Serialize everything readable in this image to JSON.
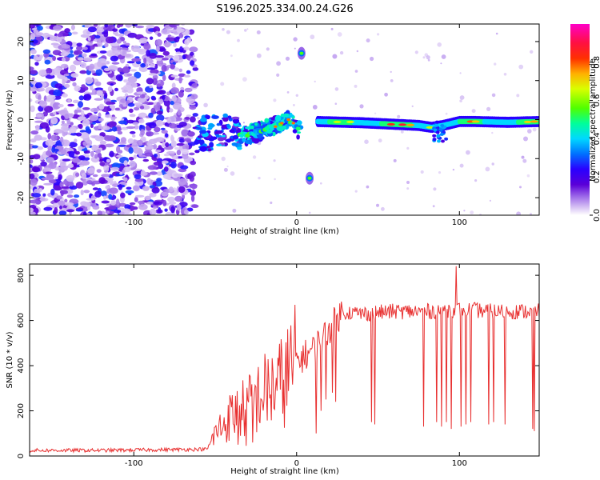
{
  "figure_title": "S196.2025.334.00.24.G26",
  "chart_data": [
    {
      "type": "heatmap",
      "title": "S196.2025.334.00.24.G26",
      "xlabel": "Height of straight line (km)",
      "ylabel": "Frequency (Hz)",
      "xlim": [
        -164,
        149
      ],
      "ylim": [
        -24.5,
        24.5
      ],
      "xticks": [
        -100,
        0,
        100
      ],
      "yticks": [
        -20,
        -10,
        0,
        10,
        20
      ],
      "colorbar": {
        "label": "Normalized spectral amplitude",
        "range": [
          0,
          1
        ],
        "ticks": [
          "0.0",
          "0.2",
          "0.4",
          "0.6",
          "0.8"
        ],
        "colors": [
          "#ffffff",
          "#d8c4f4",
          "#9a66e8",
          "#5a00d8",
          "#2a00ff",
          "#0070ff",
          "#00d8ff",
          "#00ff9a",
          "#50ff00",
          "#d8ff00",
          "#ffb000",
          "#ff3000",
          "#ff1040",
          "#ff00c8"
        ]
      },
      "features": [
        {
          "name": "noise-region",
          "x_range": [
            -164,
            -62
          ],
          "freq_range": [
            -24.5,
            24.5
          ],
          "amplitude": "0.05-0.3 scattered"
        },
        {
          "name": "rising-trace",
          "points": [
            [
              -62,
              -4
            ],
            [
              -50,
              -3
            ],
            [
              -40,
              -3.5
            ],
            [
              -30,
              -4
            ],
            [
              -20,
              -2.5
            ],
            [
              -10,
              -1
            ],
            [
              -5,
              0
            ],
            [
              0,
              -2
            ],
            [
              2,
              -3
            ]
          ],
          "amplitude": "0.2-0.9"
        },
        {
          "name": "mirror-spot-upper",
          "x": 3,
          "freq": 17,
          "amplitude": "0.3"
        },
        {
          "name": "mirror-spot-lower",
          "x": 8,
          "freq": -15,
          "amplitude": "0.3"
        },
        {
          "name": "flat-trace",
          "points": [
            [
              13,
              -0.5
            ],
            [
              40,
              -0.8
            ],
            [
              60,
              -1.2
            ],
            [
              75,
              -1.5
            ],
            [
              83,
              -2
            ],
            [
              90,
              -1.5
            ],
            [
              100,
              -0.5
            ],
            [
              110,
              -0.5
            ],
            [
              130,
              -0.7
            ],
            [
              149,
              -0.5
            ]
          ],
          "amplitude": "0.2-0.9"
        }
      ]
    },
    {
      "type": "line",
      "xlabel": "Height of straight line (km)",
      "ylabel": "SNR (10 * v/v)",
      "xlim": [
        -164,
        149
      ],
      "ylim": [
        0,
        850
      ],
      "xticks": [
        -100,
        0,
        100
      ],
      "yticks": [
        0,
        200,
        400,
        600,
        800
      ],
      "color": "#e83030",
      "series": [
        {
          "name": "SNR",
          "description": "~25 from -164 to -52 km, rising noisily 100-450 from -52 to 0 km, 450-650 from 0 to 28 km, ~640 from 28 to 149 km with occasional dropouts to ~120",
          "x": [
            -164,
            -120,
            -80,
            -55,
            -50,
            -40,
            -30,
            -20,
            -10,
            0,
            10,
            20,
            28,
            40,
            60,
            80,
            100,
            120,
            149
          ],
          "values": [
            25,
            25,
            28,
            30,
            100,
            180,
            220,
            280,
            320,
            420,
            470,
            560,
            640,
            630,
            640,
            640,
            650,
            640,
            640
          ]
        }
      ],
      "dropouts": [
        {
          "x": -36,
          "value": 50
        },
        {
          "x": -31,
          "value": 45
        },
        {
          "x": -27,
          "value": 60
        },
        {
          "x": 12,
          "value": 100
        },
        {
          "x": 15,
          "value": 200
        },
        {
          "x": 18,
          "value": 250
        },
        {
          "x": 22,
          "value": 280
        },
        {
          "x": 24,
          "value": 240
        },
        {
          "x": 46,
          "value": 150
        },
        {
          "x": 48,
          "value": 140
        },
        {
          "x": 78,
          "value": 130
        },
        {
          "x": 86,
          "value": 150
        },
        {
          "x": 89,
          "value": 130
        },
        {
          "x": 92,
          "value": 150
        },
        {
          "x": 95,
          "value": 120
        },
        {
          "x": 98,
          "value": 125
        },
        {
          "x": 101,
          "value": 130
        },
        {
          "x": 104,
          "value": 140
        },
        {
          "x": 107,
          "value": 150
        },
        {
          "x": 118,
          "value": 140
        },
        {
          "x": 121,
          "value": 150
        },
        {
          "x": 128,
          "value": 140
        },
        {
          "x": 145,
          "value": 120
        },
        {
          "x": 146,
          "value": 110
        }
      ],
      "spikes": [
        {
          "x": 98,
          "value": 840
        }
      ]
    }
  ]
}
